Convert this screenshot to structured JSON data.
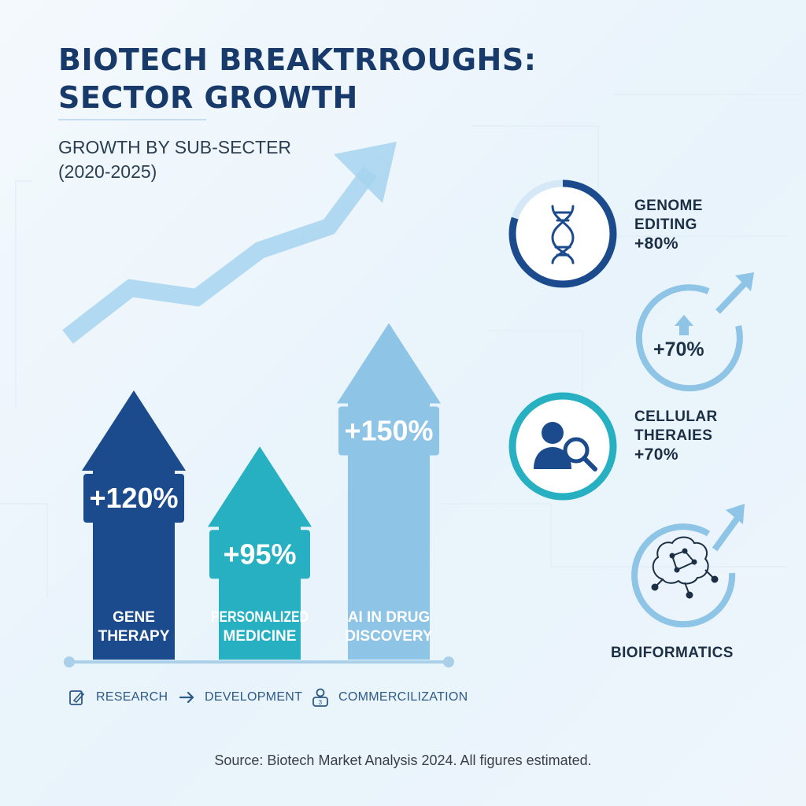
{
  "title": "BIOTECH BREAKTRROUGHS: SECTOR GROWTH",
  "subtitle_line1": "GROWTH BY SUB-SECTER",
  "subtitle_line2": "(2020-2025)",
  "chart_data": {
    "type": "bar",
    "title": "BIOTECH BREAKTRROUGHS: SECTOR GROWTH",
    "subtitle": "GROWTH BY SUB-SECTER (2020-2025)",
    "categories": [
      "GENE THERAPY",
      "PERSONALIZED MEDICINE",
      "AI IN DRUG DISCOVERY"
    ],
    "category_lines": [
      [
        "GENE",
        "THERAPY"
      ],
      [
        "PERSONALIZED",
        "MEDICINE"
      ],
      [
        "AI IN DRUG",
        "DISCOVERY"
      ]
    ],
    "values": [
      120,
      95,
      150
    ],
    "value_labels": [
      "+120%",
      "+95%",
      "+150%"
    ],
    "unit": "%",
    "colors": [
      "#1b4b8c",
      "#26b0c2",
      "#8ec4e6"
    ],
    "axis_color": "#a9cfe9",
    "grid": false,
    "legend": "none"
  },
  "stages": [
    {
      "label": "RESEARCH",
      "icon": "clipboard-pen-icon"
    },
    {
      "label": "DEVELOPMENT",
      "icon": "arrow-right-icon"
    },
    {
      "label": "COMMERCILIZATION",
      "icon": "person-badge-icon"
    }
  ],
  "side_items": [
    {
      "line1": "GENOME",
      "line2": "EDITING",
      "value": "+80%",
      "icon": "dna-icon",
      "ring_color": "#1b4b8c",
      "ring_fraction": 0.8
    },
    {
      "value": "+70%",
      "icon": "up-arrow-icon",
      "ring_color": "#8ec4e6"
    },
    {
      "line1": "CELLULAR",
      "line2": "THERAIES",
      "value": "+70%",
      "icon": "person-magnifier-icon",
      "ring_color": "#26b0c2"
    },
    {
      "line1": "BIOIFORMATICS",
      "icon": "brain-network-icon",
      "ring_color": "#8ec4e6"
    }
  ],
  "source": "Source: Biotech Market Analysis 2024. All figures estimated."
}
